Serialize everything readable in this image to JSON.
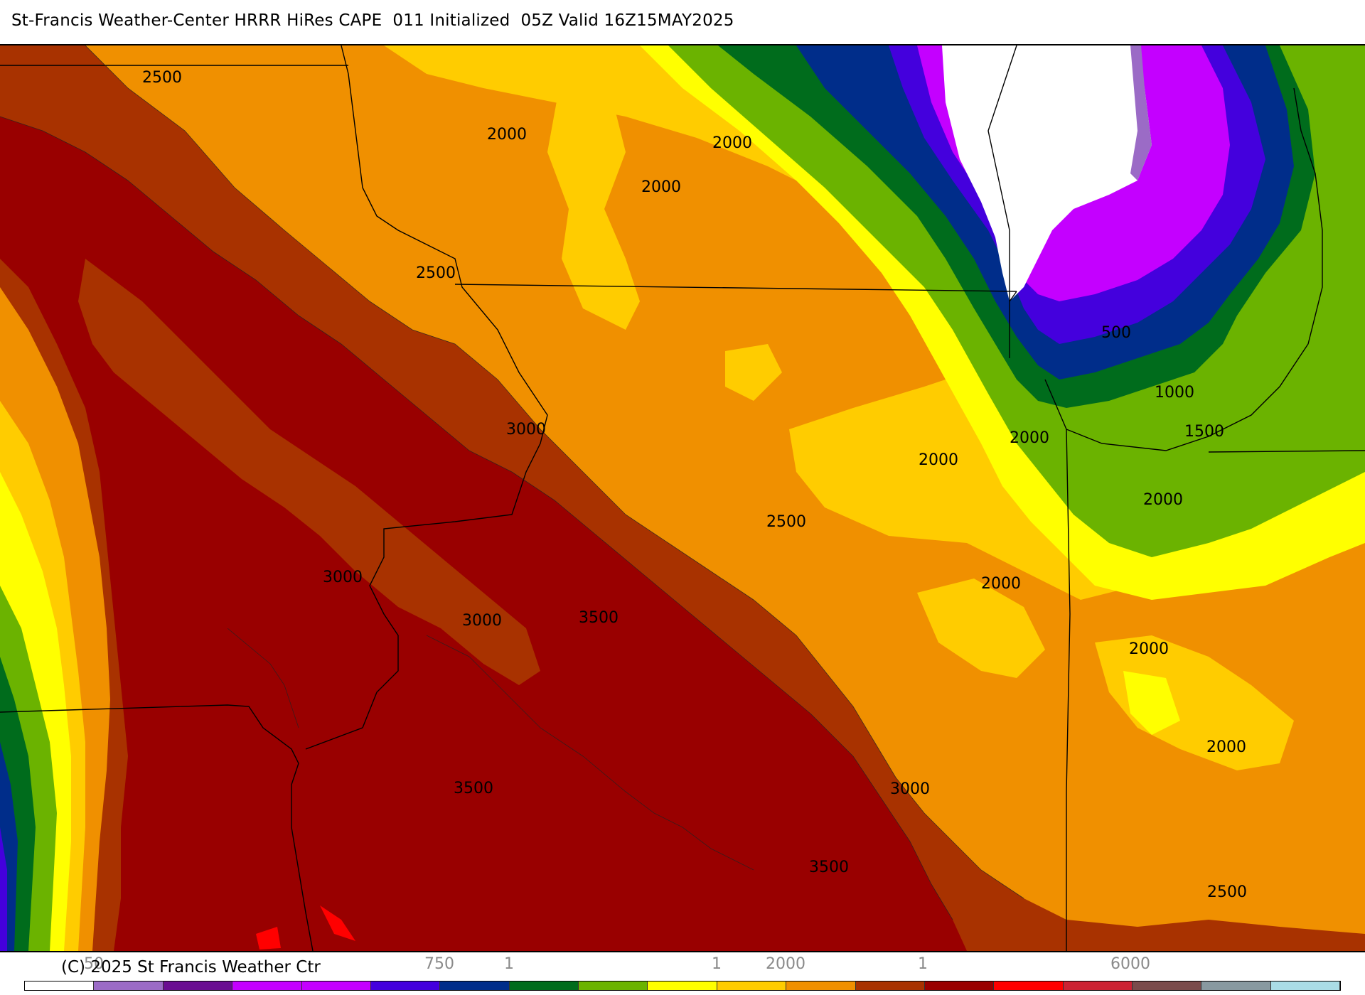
{
  "title": "St-Francis Weather-Center HRRR HiRes CAPE  011 Initialized  05Z Valid 16Z15MAY2025",
  "copyright": "(C) 2025 St Francis Weather Ctr",
  "colors": {
    "c_lt2500": "#ffffff",
    "c_250": "#9b6bc6",
    "c_400": "#6a0d91",
    "c_500": "#c400ff",
    "c_750": "#4400dd",
    "c_1000": "#002d8a",
    "c_1250": "#006c1c",
    "c_1500": "#6bb300",
    "c_1750": "#ffff00",
    "c_2000": "#ffcc00",
    "c_2250": "#f09000",
    "c_2500": "#a83200",
    "c_3000": "#990000",
    "c_3500": "#ff0000"
  },
  "legend": {
    "labels": [
      "50",
      "750",
      "1",
      "1",
      "2000",
      "1",
      "6000"
    ],
    "colors": [
      "#ffffff",
      "#9b6bc6",
      "#6a0d91",
      "#c400ff",
      "#c400ff",
      "#4400dd",
      "#002d8a",
      "#006c1c",
      "#6bb300",
      "#ffff00",
      "#ffcc00",
      "#f09000",
      "#a83200",
      "#990000",
      "#ff0000",
      "#cc2233",
      "#7a4b4b",
      "#8899a0",
      "#aadce6"
    ]
  },
  "contour_labels": [
    {
      "text": "2500"
    },
    {
      "text": "2000"
    },
    {
      "text": "2000"
    },
    {
      "text": "2000"
    },
    {
      "text": "2500"
    },
    {
      "text": "3000"
    },
    {
      "text": "3000"
    },
    {
      "text": "3000"
    },
    {
      "text": "3500"
    },
    {
      "text": "3500"
    },
    {
      "text": "3500"
    },
    {
      "text": "2500"
    },
    {
      "text": "3000"
    },
    {
      "text": "2000"
    },
    {
      "text": "2000"
    },
    {
      "text": "500"
    },
    {
      "text": "1000"
    },
    {
      "text": "1500"
    },
    {
      "text": "2000"
    },
    {
      "text": "2000"
    },
    {
      "text": "2000"
    },
    {
      "text": "2000"
    },
    {
      "text": "2500"
    }
  ]
}
